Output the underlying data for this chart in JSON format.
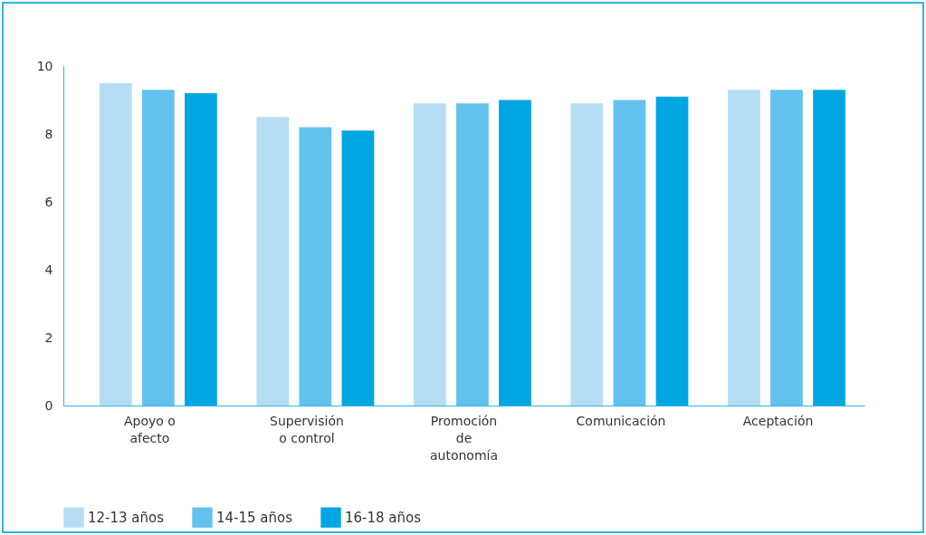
{
  "chart_data": {
    "type": "bar",
    "categories": [
      "Apoyo o afecto",
      "Supervisión o control",
      "Promoción de autonomía",
      "Comunicación",
      "Aceptación"
    ],
    "series": [
      {
        "name": "12-13 años",
        "color": "#b5def5",
        "values": [
          9.5,
          8.5,
          8.9,
          8.9,
          9.3
        ]
      },
      {
        "name": "14-15 años",
        "color": "#63c2ed",
        "values": [
          9.3,
          8.2,
          8.9,
          9.0,
          9.3
        ]
      },
      {
        "name": "16-18 años",
        "color": "#00a6e2",
        "values": [
          9.2,
          8.1,
          9.0,
          9.1,
          9.3
        ]
      }
    ],
    "ylim": [
      0,
      10
    ],
    "yticks": [
      0,
      2,
      4,
      6,
      8,
      10
    ],
    "grid": false,
    "legend": "bottom"
  }
}
